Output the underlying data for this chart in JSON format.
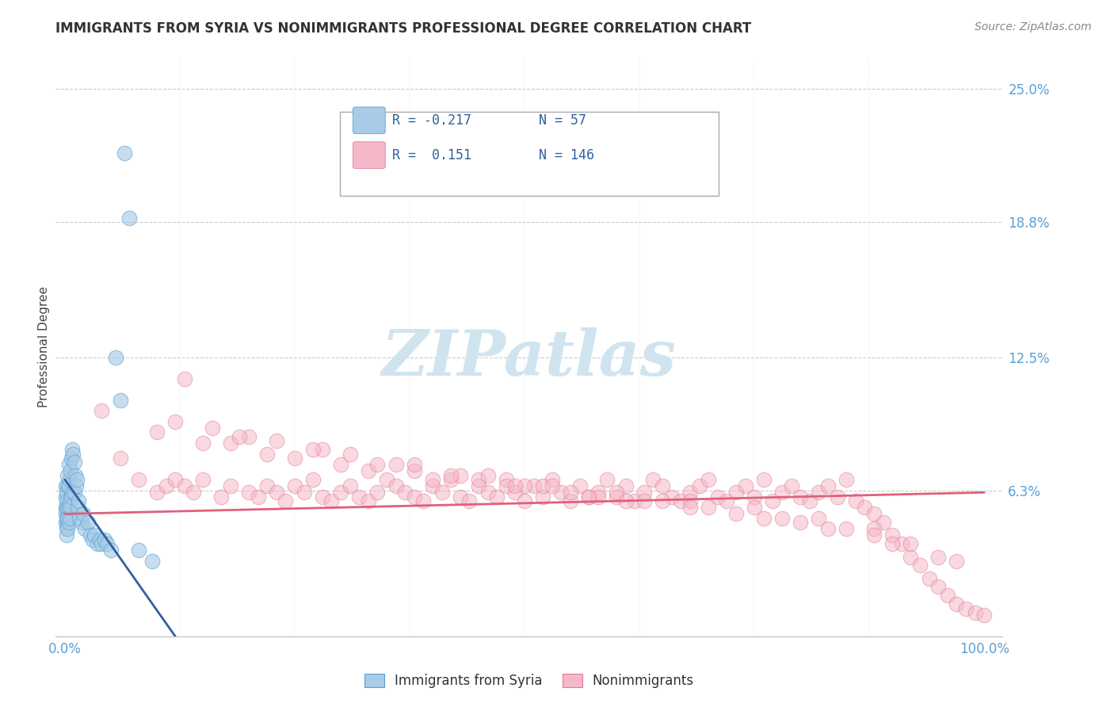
{
  "title": "IMMIGRANTS FROM SYRIA VS NONIMMIGRANTS PROFESSIONAL DEGREE CORRELATION CHART",
  "source_text": "Source: ZipAtlas.com",
  "ylabel": "Professional Degree",
  "xlim": [
    -0.01,
    1.02
  ],
  "ylim": [
    -0.005,
    0.265
  ],
  "ytick_vals": [
    0.0,
    0.063,
    0.125,
    0.188,
    0.25
  ],
  "ytick_labels": [
    "",
    "6.3%",
    "12.5%",
    "18.8%",
    "25.0%"
  ],
  "color_blue": "#a8cce8",
  "color_blue_edge": "#5aa0d0",
  "color_pink": "#f5b8c8",
  "color_pink_edge": "#e07898",
  "color_pink_line": "#e0607a",
  "color_blue_line": "#3060a0",
  "title_color": "#333333",
  "tick_color": "#5a9fd4",
  "watermark_color": "#d0e4f0",
  "background_color": "#ffffff",
  "grid_color": "#cccccc",
  "legend_r1_val": "-0.217",
  "legend_n1_val": "57",
  "legend_r2_val": "0.151",
  "legend_n2_val": "146",
  "syria_x": [
    0.001,
    0.001,
    0.001,
    0.001,
    0.001,
    0.002,
    0.002,
    0.002,
    0.002,
    0.002,
    0.002,
    0.003,
    0.003,
    0.003,
    0.003,
    0.003,
    0.004,
    0.004,
    0.004,
    0.004,
    0.005,
    0.005,
    0.005,
    0.006,
    0.006,
    0.007,
    0.007,
    0.008,
    0.008,
    0.009,
    0.01,
    0.01,
    0.011,
    0.012,
    0.013,
    0.014,
    0.015,
    0.016,
    0.018,
    0.02,
    0.022,
    0.025,
    0.028,
    0.03,
    0.032,
    0.035,
    0.038,
    0.04,
    0.043,
    0.046,
    0.05,
    0.055,
    0.06,
    0.065,
    0.07,
    0.08,
    0.095
  ],
  "syria_y": [
    0.065,
    0.06,
    0.055,
    0.052,
    0.048,
    0.062,
    0.058,
    0.054,
    0.05,
    0.046,
    0.042,
    0.07,
    0.065,
    0.055,
    0.05,
    0.045,
    0.075,
    0.065,
    0.055,
    0.048,
    0.068,
    0.058,
    0.05,
    0.072,
    0.055,
    0.078,
    0.06,
    0.082,
    0.062,
    0.08,
    0.076,
    0.062,
    0.07,
    0.065,
    0.068,
    0.055,
    0.058,
    0.05,
    0.048,
    0.052,
    0.045,
    0.048,
    0.042,
    0.04,
    0.042,
    0.038,
    0.04,
    0.038,
    0.04,
    0.038,
    0.035,
    0.125,
    0.105,
    0.22,
    0.19,
    0.035,
    0.03
  ],
  "nonimm_x": [
    0.04,
    0.06,
    0.08,
    0.1,
    0.11,
    0.12,
    0.13,
    0.14,
    0.15,
    0.17,
    0.18,
    0.2,
    0.21,
    0.22,
    0.23,
    0.24,
    0.25,
    0.26,
    0.27,
    0.28,
    0.29,
    0.3,
    0.31,
    0.32,
    0.33,
    0.34,
    0.35,
    0.36,
    0.37,
    0.38,
    0.39,
    0.4,
    0.41,
    0.42,
    0.43,
    0.44,
    0.45,
    0.46,
    0.47,
    0.48,
    0.49,
    0.5,
    0.51,
    0.52,
    0.53,
    0.54,
    0.55,
    0.56,
    0.57,
    0.58,
    0.59,
    0.6,
    0.61,
    0.62,
    0.63,
    0.64,
    0.65,
    0.66,
    0.67,
    0.68,
    0.69,
    0.7,
    0.71,
    0.72,
    0.73,
    0.74,
    0.75,
    0.76,
    0.77,
    0.78,
    0.79,
    0.8,
    0.81,
    0.82,
    0.83,
    0.84,
    0.85,
    0.86,
    0.87,
    0.88,
    0.89,
    0.9,
    0.91,
    0.92,
    0.93,
    0.94,
    0.95,
    0.96,
    0.97,
    0.98,
    0.99,
    1.0,
    0.15,
    0.22,
    0.3,
    0.38,
    0.45,
    0.52,
    0.6,
    0.68,
    0.75,
    0.82,
    0.88,
    0.1,
    0.18,
    0.25,
    0.33,
    0.4,
    0.48,
    0.55,
    0.63,
    0.7,
    0.78,
    0.85,
    0.92,
    0.13,
    0.2,
    0.28,
    0.36,
    0.43,
    0.5,
    0.58,
    0.65,
    0.73,
    0.8,
    0.88,
    0.95,
    0.16,
    0.23,
    0.31,
    0.38,
    0.46,
    0.53,
    0.61,
    0.68,
    0.76,
    0.83,
    0.9,
    0.97,
    0.12,
    0.19,
    0.27,
    0.34,
    0.42,
    0.49,
    0.57
  ],
  "nonimm_y": [
    0.1,
    0.078,
    0.068,
    0.062,
    0.065,
    0.068,
    0.065,
    0.062,
    0.068,
    0.06,
    0.065,
    0.062,
    0.06,
    0.065,
    0.062,
    0.058,
    0.065,
    0.062,
    0.068,
    0.06,
    0.058,
    0.062,
    0.065,
    0.06,
    0.058,
    0.062,
    0.068,
    0.065,
    0.062,
    0.06,
    0.058,
    0.065,
    0.062,
    0.068,
    0.06,
    0.058,
    0.065,
    0.062,
    0.06,
    0.068,
    0.062,
    0.058,
    0.065,
    0.06,
    0.068,
    0.062,
    0.058,
    0.065,
    0.06,
    0.062,
    0.068,
    0.06,
    0.065,
    0.058,
    0.062,
    0.068,
    0.065,
    0.06,
    0.058,
    0.062,
    0.065,
    0.068,
    0.06,
    0.058,
    0.062,
    0.065,
    0.06,
    0.068,
    0.058,
    0.062,
    0.065,
    0.06,
    0.058,
    0.062,
    0.065,
    0.06,
    0.068,
    0.058,
    0.055,
    0.052,
    0.048,
    0.042,
    0.038,
    0.032,
    0.028,
    0.022,
    0.018,
    0.014,
    0.01,
    0.008,
    0.006,
    0.005,
    0.085,
    0.08,
    0.075,
    0.072,
    0.068,
    0.065,
    0.062,
    0.058,
    0.055,
    0.05,
    0.045,
    0.09,
    0.085,
    0.078,
    0.072,
    0.068,
    0.065,
    0.062,
    0.058,
    0.055,
    0.05,
    0.045,
    0.038,
    0.115,
    0.088,
    0.082,
    0.075,
    0.07,
    0.065,
    0.06,
    0.058,
    0.052,
    0.048,
    0.042,
    0.032,
    0.092,
    0.086,
    0.08,
    0.075,
    0.07,
    0.065,
    0.058,
    0.055,
    0.05,
    0.045,
    0.038,
    0.03,
    0.095,
    0.088,
    0.082,
    0.075,
    0.07,
    0.065,
    0.06
  ],
  "blue_trend_x": [
    0.0,
    0.12
  ],
  "blue_trend_y_start": 0.068,
  "blue_trend_y_end": -0.005,
  "pink_trend_x": [
    0.0,
    1.0
  ],
  "pink_trend_y_start": 0.052,
  "pink_trend_y_end": 0.062
}
